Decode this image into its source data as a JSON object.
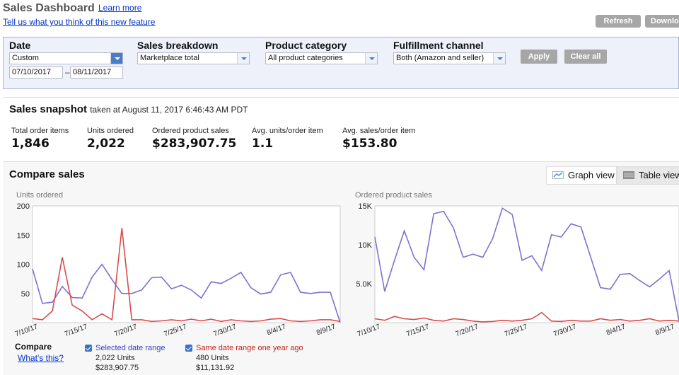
{
  "header": {
    "title": "Sales Dashboard",
    "learn_more": "Learn more",
    "feedback": "Tell us what you think of this new feature",
    "refresh": "Refresh",
    "download": "Download"
  },
  "filters": {
    "date": {
      "label": "Date",
      "value": "Custom",
      "from": "07/10/2017",
      "dash": "–",
      "to": "08/11/2017"
    },
    "breakdown": {
      "label": "Sales breakdown",
      "value": "Marketplace total"
    },
    "category": {
      "label": "Product category",
      "value": "All product categories"
    },
    "channel": {
      "label": "Fulfillment channel",
      "value": "Both (Amazon and seller)"
    },
    "apply": "Apply",
    "clear": "Clear all"
  },
  "snapshot": {
    "title": "Sales snapshot",
    "taken": "taken at August 11, 2017 6:46:43 AM PDT",
    "metrics": [
      {
        "label": "Total order items",
        "value": "1,846"
      },
      {
        "label": "Units ordered",
        "value": "2,022"
      },
      {
        "label": "Ordered product sales",
        "value": "$283,907.75"
      },
      {
        "label": "Avg. units/order item",
        "value": "1.1"
      },
      {
        "label": "Avg. sales/order item",
        "value": "$153.80"
      }
    ]
  },
  "compare": {
    "title": "Compare sales",
    "graph_view": "Graph view",
    "table_view": "Table view",
    "legend_title": "Compare",
    "whats_this": "What's this?",
    "selected": {
      "name": "Selected date range",
      "units": "2,022 Units",
      "sales": "$283,907.75",
      "color": "#7d72d2"
    },
    "previous": {
      "name": "Same date range one year ago",
      "units": "480 Units",
      "sales": "$11,131.92",
      "color": "#d94b4b"
    }
  },
  "chart_data": [
    {
      "type": "line",
      "title": "Units ordered",
      "ylim": [
        0,
        200
      ],
      "yticks": [
        "200",
        "150",
        "100",
        "50"
      ],
      "ytick_values": [
        200,
        150,
        100,
        50
      ],
      "x_labels": [
        "7/10/17",
        "7/15/17",
        "7/20/17",
        "7/25/17",
        "7/30/17",
        "8/4/17",
        "8/9/17"
      ],
      "series": [
        {
          "name": "Selected date range",
          "color": "#7d72d2",
          "values": [
            92,
            33,
            35,
            62,
            43,
            42,
            78,
            100,
            74,
            50,
            50,
            56,
            77,
            78,
            58,
            64,
            56,
            42,
            70,
            67,
            76,
            86,
            60,
            49,
            52,
            82,
            86,
            52,
            50,
            52,
            52,
            0
          ]
        },
        {
          "name": "Same date range one year ago",
          "color": "#d94b4b",
          "values": [
            7,
            5,
            20,
            112,
            30,
            20,
            5,
            15,
            5,
            162,
            5,
            5,
            2,
            3,
            5,
            3,
            6,
            3,
            6,
            2,
            5,
            3,
            2,
            3,
            6,
            7,
            3,
            2,
            3,
            5,
            5,
            2
          ]
        }
      ],
      "grid": false
    },
    {
      "type": "line",
      "title": "Ordered product sales",
      "ylim": [
        0,
        15000
      ],
      "yticks": [
        "15K",
        "10K",
        "5.0K"
      ],
      "ytick_values": [
        15000,
        10000,
        5000
      ],
      "x_labels": [
        "7/10/17",
        "7/15/17",
        "7/20/17",
        "7/25/17",
        "7/30/17",
        "8/4/17",
        "8/9/17"
      ],
      "series": [
        {
          "name": "Selected date range",
          "color": "#7d72d2",
          "values": [
            11000,
            4000,
            8000,
            11800,
            8400,
            6800,
            14000,
            14300,
            12200,
            8400,
            8800,
            8400,
            10800,
            14700,
            13900,
            8000,
            8600,
            6700,
            11300,
            11000,
            12700,
            12300,
            8400,
            4500,
            4300,
            6200,
            6300,
            5400,
            4600,
            5600,
            6700,
            200
          ]
        },
        {
          "name": "Same date range one year ago",
          "color": "#d94b4b",
          "values": [
            500,
            300,
            800,
            500,
            400,
            600,
            300,
            200,
            500,
            400,
            200,
            100,
            150,
            300,
            200,
            300,
            500,
            1300,
            200,
            150,
            300,
            200,
            200,
            500,
            300,
            400,
            200,
            300,
            500,
            200,
            300,
            200
          ]
        }
      ],
      "grid": false
    }
  ]
}
